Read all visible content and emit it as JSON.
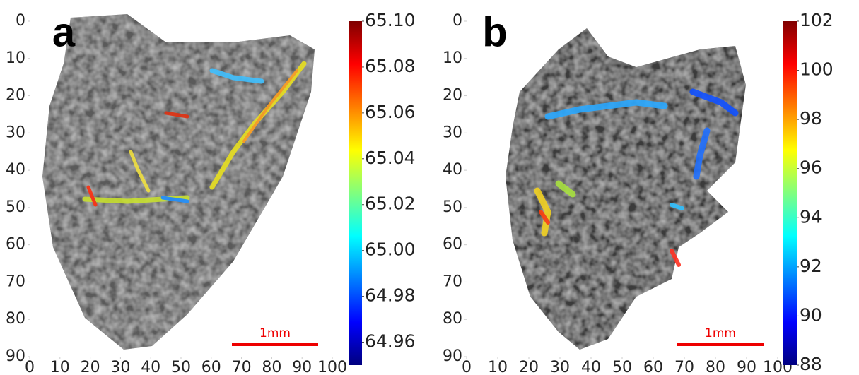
{
  "chart_data": [
    {
      "type": "heatmap",
      "panel_label": "a",
      "colormap": "jet",
      "scale_bar": "1mm",
      "xlim": [
        0,
        100
      ],
      "xticks": [
        0,
        10,
        20,
        30,
        40,
        50,
        60,
        70,
        80,
        90,
        100
      ],
      "ylim": [
        90,
        0
      ],
      "yticks": [
        0,
        10,
        20,
        30,
        40,
        50,
        60,
        70,
        80,
        90
      ],
      "clim": [
        64.95,
        65.1
      ],
      "cticks": [
        64.96,
        64.98,
        {
          "value": 65.0,
          "label": "65.00"
        },
        65.02,
        65.04,
        65.06,
        65.08,
        {
          "value": 65.1,
          "label": "65.10"
        }
      ]
    },
    {
      "type": "heatmap",
      "panel_label": "b",
      "colormap": "jet",
      "scale_bar": "1mm",
      "xlim": [
        0,
        100
      ],
      "xticks": [
        0,
        10,
        20,
        30,
        40,
        50,
        60,
        70,
        80,
        90,
        100
      ],
      "ylim": [
        90,
        0
      ],
      "yticks": [
        0,
        10,
        20,
        30,
        40,
        50,
        60,
        70,
        80,
        90
      ],
      "clim": [
        88,
        102
      ],
      "cticks": [
        88,
        90,
        92,
        94,
        96,
        98,
        100,
        102
      ]
    }
  ]
}
